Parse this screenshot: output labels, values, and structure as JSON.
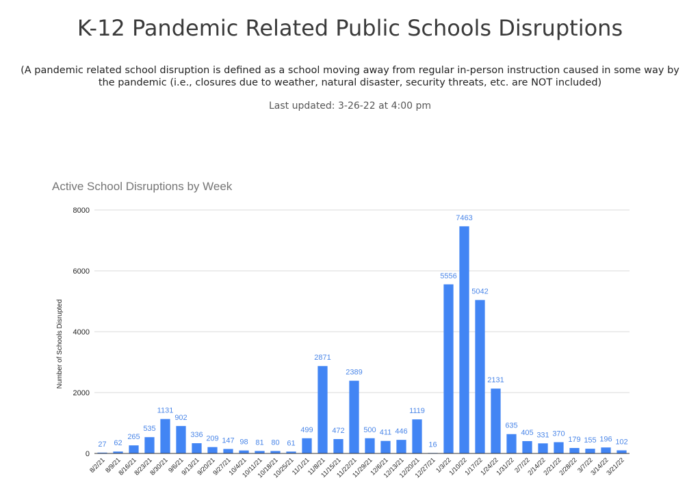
{
  "page": {
    "title": "K-12 Pandemic Related Public Schools Disruptions",
    "subtitle": "(A pandemic related school disruption is defined as a school moving away from regular in-person instruction caused in some way by the pandemic (i.e., closures due to weather, natural disaster, security threats, etc. are NOT included)",
    "last_updated": "Last updated:  3-26-22 at 4:00 pm"
  },
  "chart_data": {
    "type": "bar",
    "title": "Active School Disruptions by Week",
    "xlabel": "",
    "ylabel": "Number of Schools Disrupted",
    "ylim": [
      0,
      8000
    ],
    "yticks": [
      0,
      2000,
      4000,
      6000,
      8000
    ],
    "grid": true,
    "bar_color": "#4285f4",
    "label_color": "#4a86e8",
    "categories": [
      "8/2/21",
      "8/9/21",
      "8/16/21",
      "8/23/21",
      "8/30/21",
      "9/6/21",
      "9/13/21",
      "9/20/21",
      "9/27/21",
      "10/4/21",
      "10/11/21",
      "10/18/21",
      "10/25/21",
      "11/1/21",
      "11/8/21",
      "11/15/21",
      "11/22/21",
      "11/29/21",
      "12/6/21",
      "12/13/21",
      "12/20/21",
      "12/27/21",
      "1/3/22",
      "1/10/22",
      "1/17/22",
      "1/24/22",
      "1/31/22",
      "2/7/22",
      "2/14/22",
      "2/21/22",
      "2/28/22",
      "3/7/22",
      "3/14/22",
      "3/21/22"
    ],
    "values": [
      27,
      62,
      265,
      535,
      1131,
      902,
      336,
      209,
      147,
      98,
      81,
      80,
      61,
      499,
      2871,
      472,
      2389,
      500,
      411,
      446,
      1119,
      16,
      5556,
      7463,
      5042,
      2131,
      635,
      405,
      331,
      370,
      179,
      155,
      196,
      102
    ]
  }
}
